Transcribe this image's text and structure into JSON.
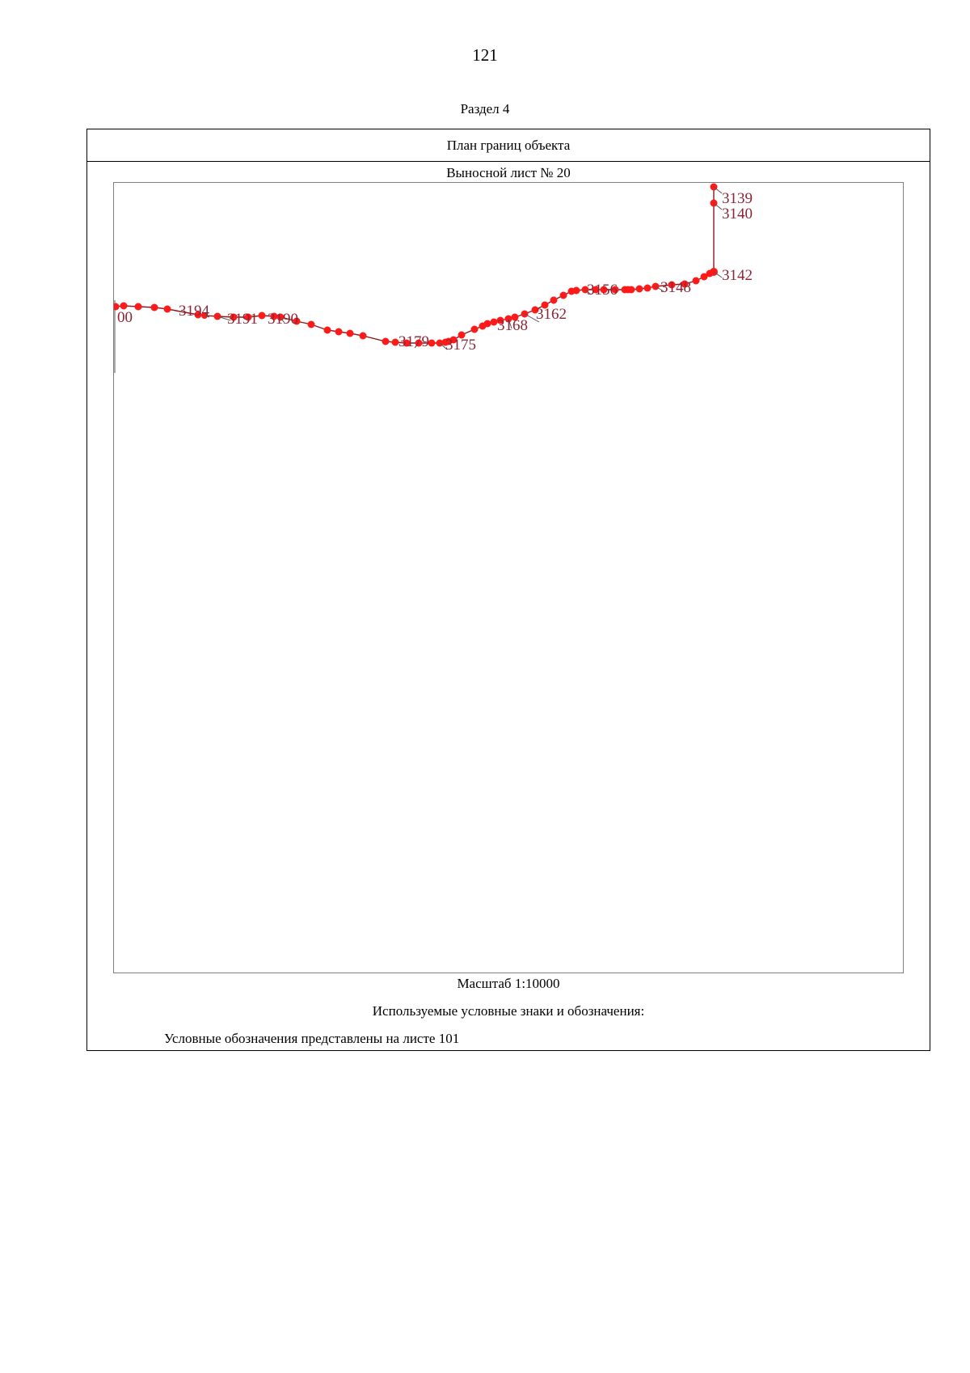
{
  "page": {
    "number": "121",
    "section": "Раздел 4"
  },
  "frame": {
    "header": "План границ объекта",
    "sheet_title": "Выносной лист № 20",
    "scale": "Масштаб 1:10000",
    "legend_title": "Используемые условные знаки и обозначения:",
    "legend_note": "Условные обозначения представлены на листе 101"
  },
  "map": {
    "point_color": "#ff1a1a",
    "line_color": "#8b1a1a",
    "label_color": "#8b2535",
    "labels": {
      "p3200": "00",
      "p3194": "3194",
      "p3191": "3191",
      "p3190": "3190",
      "p3179": "3179",
      "p3175": "3175",
      "p3168": "3168",
      "p3162": "3162",
      "p3156": "3156",
      "p3148": "3148",
      "p3142": "3142",
      "p3140": "3140",
      "p3139": "3139"
    }
  }
}
